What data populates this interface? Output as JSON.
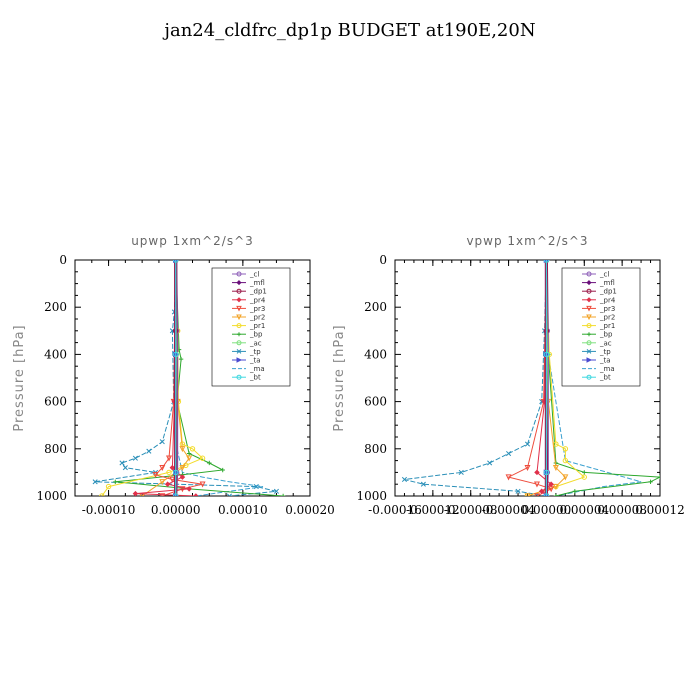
{
  "title": "jan24_cldfrc_dp1p  BUDGET at190E,20N",
  "legend_entries": [
    {
      "name": "_cl",
      "color": "#8e5fb8",
      "marker": "circle"
    },
    {
      "name": "_mfl",
      "color": "#6a0f7a",
      "marker": "diamond"
    },
    {
      "name": "_dp1",
      "color": "#9b1b4a",
      "marker": "circle"
    },
    {
      "name": "_pr4",
      "color": "#e0304a",
      "marker": "diamond"
    },
    {
      "name": "_pr3",
      "color": "#ee4c3c",
      "marker": "triangle"
    },
    {
      "name": "_pr2",
      "color": "#f3a42a",
      "marker": "triangle"
    },
    {
      "name": "_pr1",
      "color": "#f3dc2a",
      "marker": "circle"
    },
    {
      "name": "_bp",
      "color": "#2da82d",
      "marker": "plus"
    },
    {
      "name": "_ac",
      "color": "#7fe07f",
      "marker": "circle"
    },
    {
      "name": "_tp",
      "color": "#2a8fb8",
      "marker": "x"
    },
    {
      "name": "_ta",
      "color": "#4a4ad0",
      "marker": "arrow"
    },
    {
      "name": "_ma",
      "color": "#3aa0d0",
      "marker": "none"
    },
    {
      "name": "_bt",
      "color": "#40d8e0",
      "marker": "circle"
    }
  ],
  "chart_data": [
    {
      "type": "line",
      "title": "upwp   1xm^2/s^3",
      "ylabel": "Pressure [hPa]",
      "xlabel": "",
      "xlim": [
        -0.00015,
        0.0002
      ],
      "ylim": [
        1000,
        0
      ],
      "xticks": [
        -0.0001,
        0.0,
        0.0001,
        0.0002
      ],
      "xtick_labels": [
        "-0.00010",
        "0.00000",
        "0.00010",
        "0.00020"
      ],
      "yticks": [
        0,
        200,
        400,
        600,
        800,
        1000
      ],
      "ytick_labels": [
        "0",
        "200",
        "400",
        "600",
        "800",
        "1000"
      ],
      "legend_position": "top-right",
      "series": [
        {
          "name": "_tp",
          "x": [
            0,
            -2e-06,
            -5e-06,
            -3e-06,
            -2e-05,
            -4e-05,
            -6e-05,
            -8e-05,
            -7.5e-05,
            -3e-05,
            -0.00012,
            0.00012,
            0.00015,
            8e-05
          ],
          "y": [
            0,
            220,
            300,
            600,
            770,
            810,
            840,
            860,
            880,
            900,
            940,
            960,
            980,
            1000
          ]
        },
        {
          "name": "_ma",
          "x": [
            0,
            2e-06,
            2e-06,
            1e-05,
            4e-05,
            8e-05,
            0.00013,
            3e-05
          ],
          "y": [
            0,
            300,
            800,
            900,
            920,
            940,
            960,
            1000
          ]
        },
        {
          "name": "_bp",
          "x": [
            0,
            5e-06,
            8e-06,
            2e-06,
            2e-05,
            5e-05,
            7e-05,
            1e-05,
            -9e-05,
            2e-05,
            0.00016
          ],
          "y": [
            0,
            380,
            420,
            600,
            820,
            860,
            890,
            910,
            940,
            970,
            1000
          ]
        },
        {
          "name": "_pr1",
          "x": [
            0,
            3e-06,
            4e-06,
            1e-05,
            2.5e-05,
            4e-05,
            1.5e-05,
            -1e-05,
            -0.0001,
            -0.00011
          ],
          "y": [
            0,
            300,
            600,
            780,
            800,
            840,
            870,
            900,
            960,
            1000
          ]
        },
        {
          "name": "_pr2",
          "x": [
            0,
            3e-06,
            1e-05,
            2e-05,
            1e-05,
            -2e-05,
            -5e-05
          ],
          "y": [
            0,
            600,
            800,
            840,
            880,
            940,
            1000
          ]
        },
        {
          "name": "_pr3",
          "x": [
            0,
            -3e-06,
            -1e-05,
            -2e-05,
            -3e-05,
            -5e-06,
            4e-05,
            1e-05,
            -2e-05
          ],
          "y": [
            0,
            600,
            840,
            880,
            910,
            930,
            950,
            970,
            1000
          ]
        },
        {
          "name": "_pr4",
          "x": [
            0,
            -2e-06,
            -5e-06,
            1e-05,
            -1.2e-05,
            2e-05,
            -6e-05,
            3e-05
          ],
          "y": [
            0,
            600,
            880,
            920,
            950,
            970,
            990,
            1000
          ]
        },
        {
          "name": "_cl",
          "x": [
            0,
            1.5e-06,
            1.5e-06,
            0.0
          ],
          "y": [
            0,
            300,
            900,
            1000
          ]
        },
        {
          "name": "_mfl",
          "x": [
            0,
            0.0,
            0.0,
            0.0
          ],
          "y": [
            0,
            300,
            900,
            1000
          ]
        },
        {
          "name": "_dp1",
          "x": [
            0,
            0.0,
            0.0,
            0.0
          ],
          "y": [
            0,
            300,
            900,
            1000
          ]
        },
        {
          "name": "_ac",
          "x": [
            0,
            1e-06,
            0.0,
            0.0
          ],
          "y": [
            0,
            400,
            900,
            1000
          ]
        },
        {
          "name": "_ta",
          "x": [
            0,
            0.0,
            0.0,
            0.0
          ],
          "y": [
            0,
            400,
            900,
            1000
          ]
        },
        {
          "name": "_bt",
          "x": [
            0,
            0.0,
            0.0,
            0.0
          ],
          "y": [
            0,
            400,
            900,
            1000
          ]
        }
      ]
    },
    {
      "type": "line",
      "title": "vpwp   1xm^2/s^3",
      "ylabel": "Pressure [hPa]",
      "xlabel": "",
      "xlim": [
        -0.00016,
        0.00012
      ],
      "ylim": [
        1000,
        0
      ],
      "xticks": [
        -0.00016,
        -0.00012,
        -8e-05,
        -4e-05,
        0.0,
        4e-05,
        8e-05,
        0.00012
      ],
      "xtick_labels": [
        "-0.00016",
        "-0.00012",
        "-0.00008",
        "-0.00004",
        "0.00000",
        "0.00004",
        "0.00008",
        "0.00012"
      ],
      "yticks": [
        0,
        200,
        400,
        600,
        800,
        1000
      ],
      "ytick_labels": [
        "0",
        "200",
        "400",
        "600",
        "800",
        "1000"
      ],
      "legend_position": "top-right",
      "series": [
        {
          "name": "_tp",
          "x": [
            0,
            -2e-06,
            -5e-06,
            -2e-05,
            -4e-05,
            -6e-05,
            -9e-05,
            -0.00015,
            -0.00013,
            -3e-05,
            0.0
          ],
          "y": [
            0,
            300,
            600,
            780,
            820,
            860,
            900,
            930,
            950,
            980,
            1000
          ]
        },
        {
          "name": "_ma",
          "x": [
            0,
            2e-06,
            2e-05,
            0.0001,
            6e-05,
            1e-05
          ],
          "y": [
            0,
            400,
            850,
            940,
            960,
            1000
          ]
        },
        {
          "name": "_bp",
          "x": [
            0,
            2e-06,
            1e-05,
            4e-05,
            0.00012,
            0.00011,
            3e-05,
            1e-05
          ],
          "y": [
            0,
            400,
            860,
            900,
            920,
            940,
            980,
            1000
          ]
        },
        {
          "name": "_pr1",
          "x": [
            0,
            3e-06,
            1e-05,
            2e-05,
            2e-05,
            4e-05,
            1e-05,
            -2e-05
          ],
          "y": [
            0,
            400,
            780,
            800,
            850,
            920,
            960,
            1000
          ]
        },
        {
          "name": "_pr2",
          "x": [
            0,
            2e-06,
            1e-05,
            2e-05,
            1e-05,
            -2e-05
          ],
          "y": [
            0,
            600,
            880,
            920,
            960,
            1000
          ]
        },
        {
          "name": "_pr3",
          "x": [
            0,
            -3e-06,
            -2e-05,
            -4e-05,
            -1e-05,
            5e-06,
            -1e-05
          ],
          "y": [
            0,
            600,
            880,
            920,
            950,
            970,
            1000
          ]
        },
        {
          "name": "_pr4",
          "x": [
            0,
            -2e-06,
            -1e-05,
            5e-06,
            -5e-06,
            0.0
          ],
          "y": [
            0,
            600,
            900,
            950,
            980,
            1000
          ]
        },
        {
          "name": "_cl",
          "x": [
            0,
            1e-06,
            1e-06,
            0.0
          ],
          "y": [
            0,
            300,
            900,
            1000
          ]
        },
        {
          "name": "_mfl",
          "x": [
            0,
            0.0,
            0.0,
            0.0
          ],
          "y": [
            0,
            300,
            900,
            1000
          ]
        },
        {
          "name": "_dp1",
          "x": [
            0,
            0.0,
            0.0,
            0.0
          ],
          "y": [
            0,
            300,
            900,
            1000
          ]
        },
        {
          "name": "_ac",
          "x": [
            0,
            1e-06,
            0.0,
            0.0
          ],
          "y": [
            0,
            400,
            900,
            1000
          ]
        },
        {
          "name": "_ta",
          "x": [
            0,
            0.0,
            0.0,
            0.0
          ],
          "y": [
            0,
            400,
            900,
            1000
          ]
        },
        {
          "name": "_bt",
          "x": [
            0,
            0.0,
            0.0,
            0.0
          ],
          "y": [
            0,
            400,
            900,
            1000
          ]
        }
      ]
    }
  ]
}
